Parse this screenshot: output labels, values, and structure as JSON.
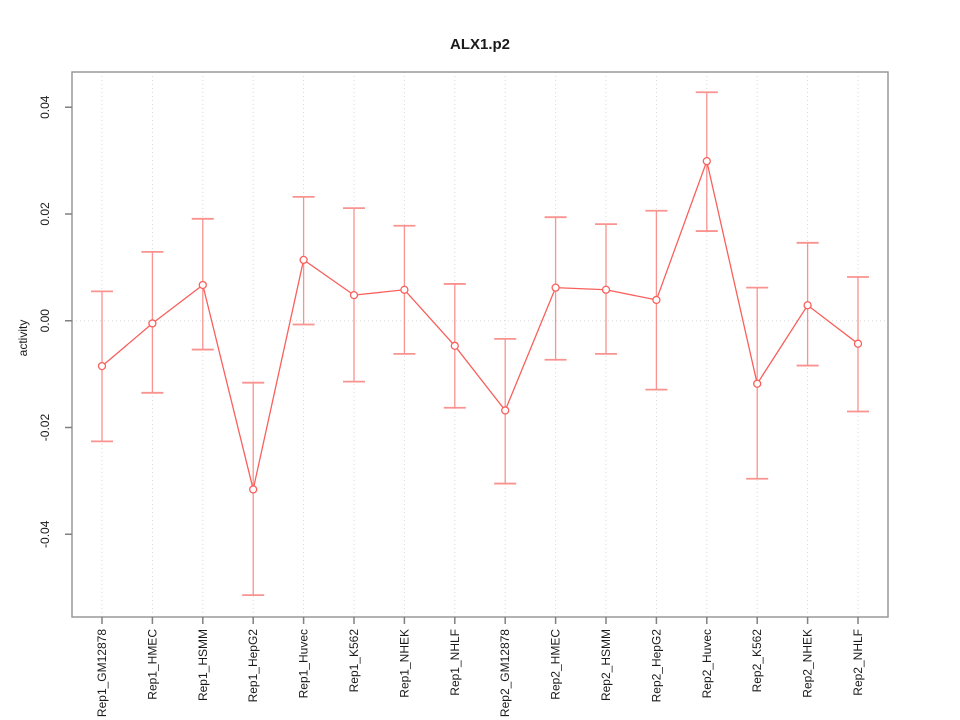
{
  "chart_data": {
    "type": "line",
    "title": "ALX1.p2",
    "ylabel": "activity",
    "xlabel": "",
    "legend": "none",
    "grid": "dotted vertical gridline at each category; dotted horizontal line at y=0",
    "marker": "open-circle",
    "error_bars": true,
    "categories": [
      "Rep1_GM12878",
      "Rep1_HMEC",
      "Rep1_HSMM",
      "Rep1_HepG2",
      "Rep1_Huvec",
      "Rep1_K562",
      "Rep1_NHEK",
      "Rep1_NHLF",
      "Rep2_GM12878",
      "Rep2_HMEC",
      "Rep2_HSMM",
      "Rep2_HepG2",
      "Rep2_Huvec",
      "Rep2_K562",
      "Rep2_NHEK",
      "Rep2_NHLF"
    ],
    "series": [
      {
        "name": "activity",
        "values": [
          -0.0085,
          -0.0005,
          0.0067,
          -0.0316,
          0.0114,
          0.0048,
          0.0058,
          -0.0047,
          -0.0168,
          0.0062,
          0.0058,
          0.0039,
          0.0299,
          -0.0118,
          0.0029,
          -0.0043
        ],
        "ci_lower": [
          -0.0226,
          -0.0135,
          -0.0054,
          -0.0514,
          -0.0007,
          -0.0114,
          -0.0062,
          -0.0163,
          -0.0305,
          -0.0073,
          -0.0062,
          -0.0129,
          0.0168,
          -0.0296,
          -0.0084,
          -0.017
        ],
        "ci_upper": [
          0.0055,
          0.0129,
          0.0191,
          -0.0116,
          0.0232,
          0.0211,
          0.0178,
          0.0069,
          -0.0034,
          0.0194,
          0.0181,
          0.0206,
          0.0428,
          0.0062,
          0.0146,
          0.0082
        ]
      }
    ],
    "yticks": [
      -0.04,
      -0.02,
      0,
      0.02,
      0.04
    ],
    "ylim": [
      -0.0555,
      0.0466
    ],
    "zero_line": 0,
    "colors": {
      "series": "#f8605c",
      "error_bar": "#f9938f",
      "marker_fill": "#ffffff",
      "grid": "#d8d8d8",
      "zero_line": "#dcdcdc",
      "frame": "#999999",
      "tick": "#808080",
      "text": "#1a1a1a"
    }
  }
}
